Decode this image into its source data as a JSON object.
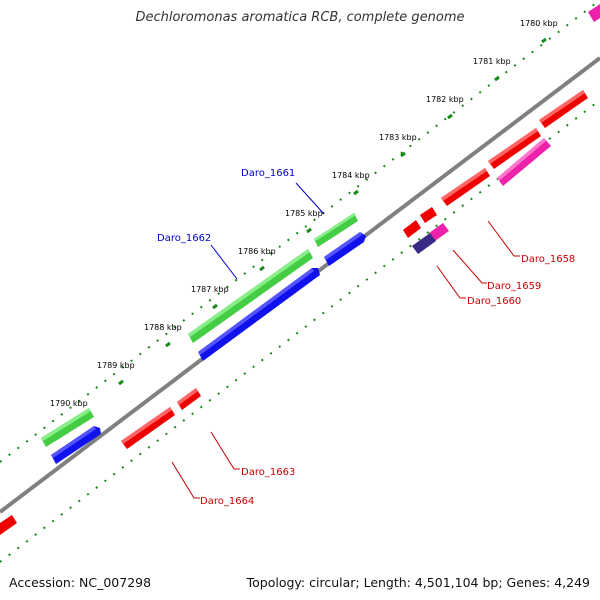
{
  "header": {
    "title": "Dechloromonas aromatica RCB, complete genome"
  },
  "footer": {
    "accession": "Accession: NC_007298",
    "summary": "Topology: circular; Length: 4,501,104 bp; Genes: 4,249"
  },
  "ticks": [
    {
      "label": "1780 kbp",
      "pos": 1780
    },
    {
      "label": "1781 kbp",
      "pos": 1781
    },
    {
      "label": "1782 kbp",
      "pos": 1782
    },
    {
      "label": "1783 kbp",
      "pos": 1783
    },
    {
      "label": "1784 kbp",
      "pos": 1784
    },
    {
      "label": "1785 kbp",
      "pos": 1785
    },
    {
      "label": "1786 kbp",
      "pos": 1786
    },
    {
      "label": "1787 kbp",
      "pos": 1787
    },
    {
      "label": "1788 kbp",
      "pos": 1788
    },
    {
      "label": "1789 kbp",
      "pos": 1789
    },
    {
      "label": "1790 kbp",
      "pos": 1790
    }
  ],
  "gene_labels": [
    {
      "label": "Daro_1661",
      "color": "#0000cc"
    },
    {
      "label": "Daro_1662",
      "color": "#0000cc"
    },
    {
      "label": "Daro_1658",
      "color": "#cc0000"
    },
    {
      "label": "Daro_1659",
      "color": "#cc0000"
    },
    {
      "label": "Daro_1660",
      "color": "#cc0000"
    },
    {
      "label": "Daro_1663",
      "color": "#cc0000"
    },
    {
      "label": "Daro_1664",
      "color": "#cc0000"
    }
  ],
  "colors": {
    "backbone": "#808080",
    "ticks": "#1a8a1a",
    "green_feature": "#44cc44",
    "blue_feature": "#1111ee",
    "red_feature": "#ee0000",
    "pink_feature": "#ee22aa",
    "purple_feature": "#3a2a88"
  }
}
